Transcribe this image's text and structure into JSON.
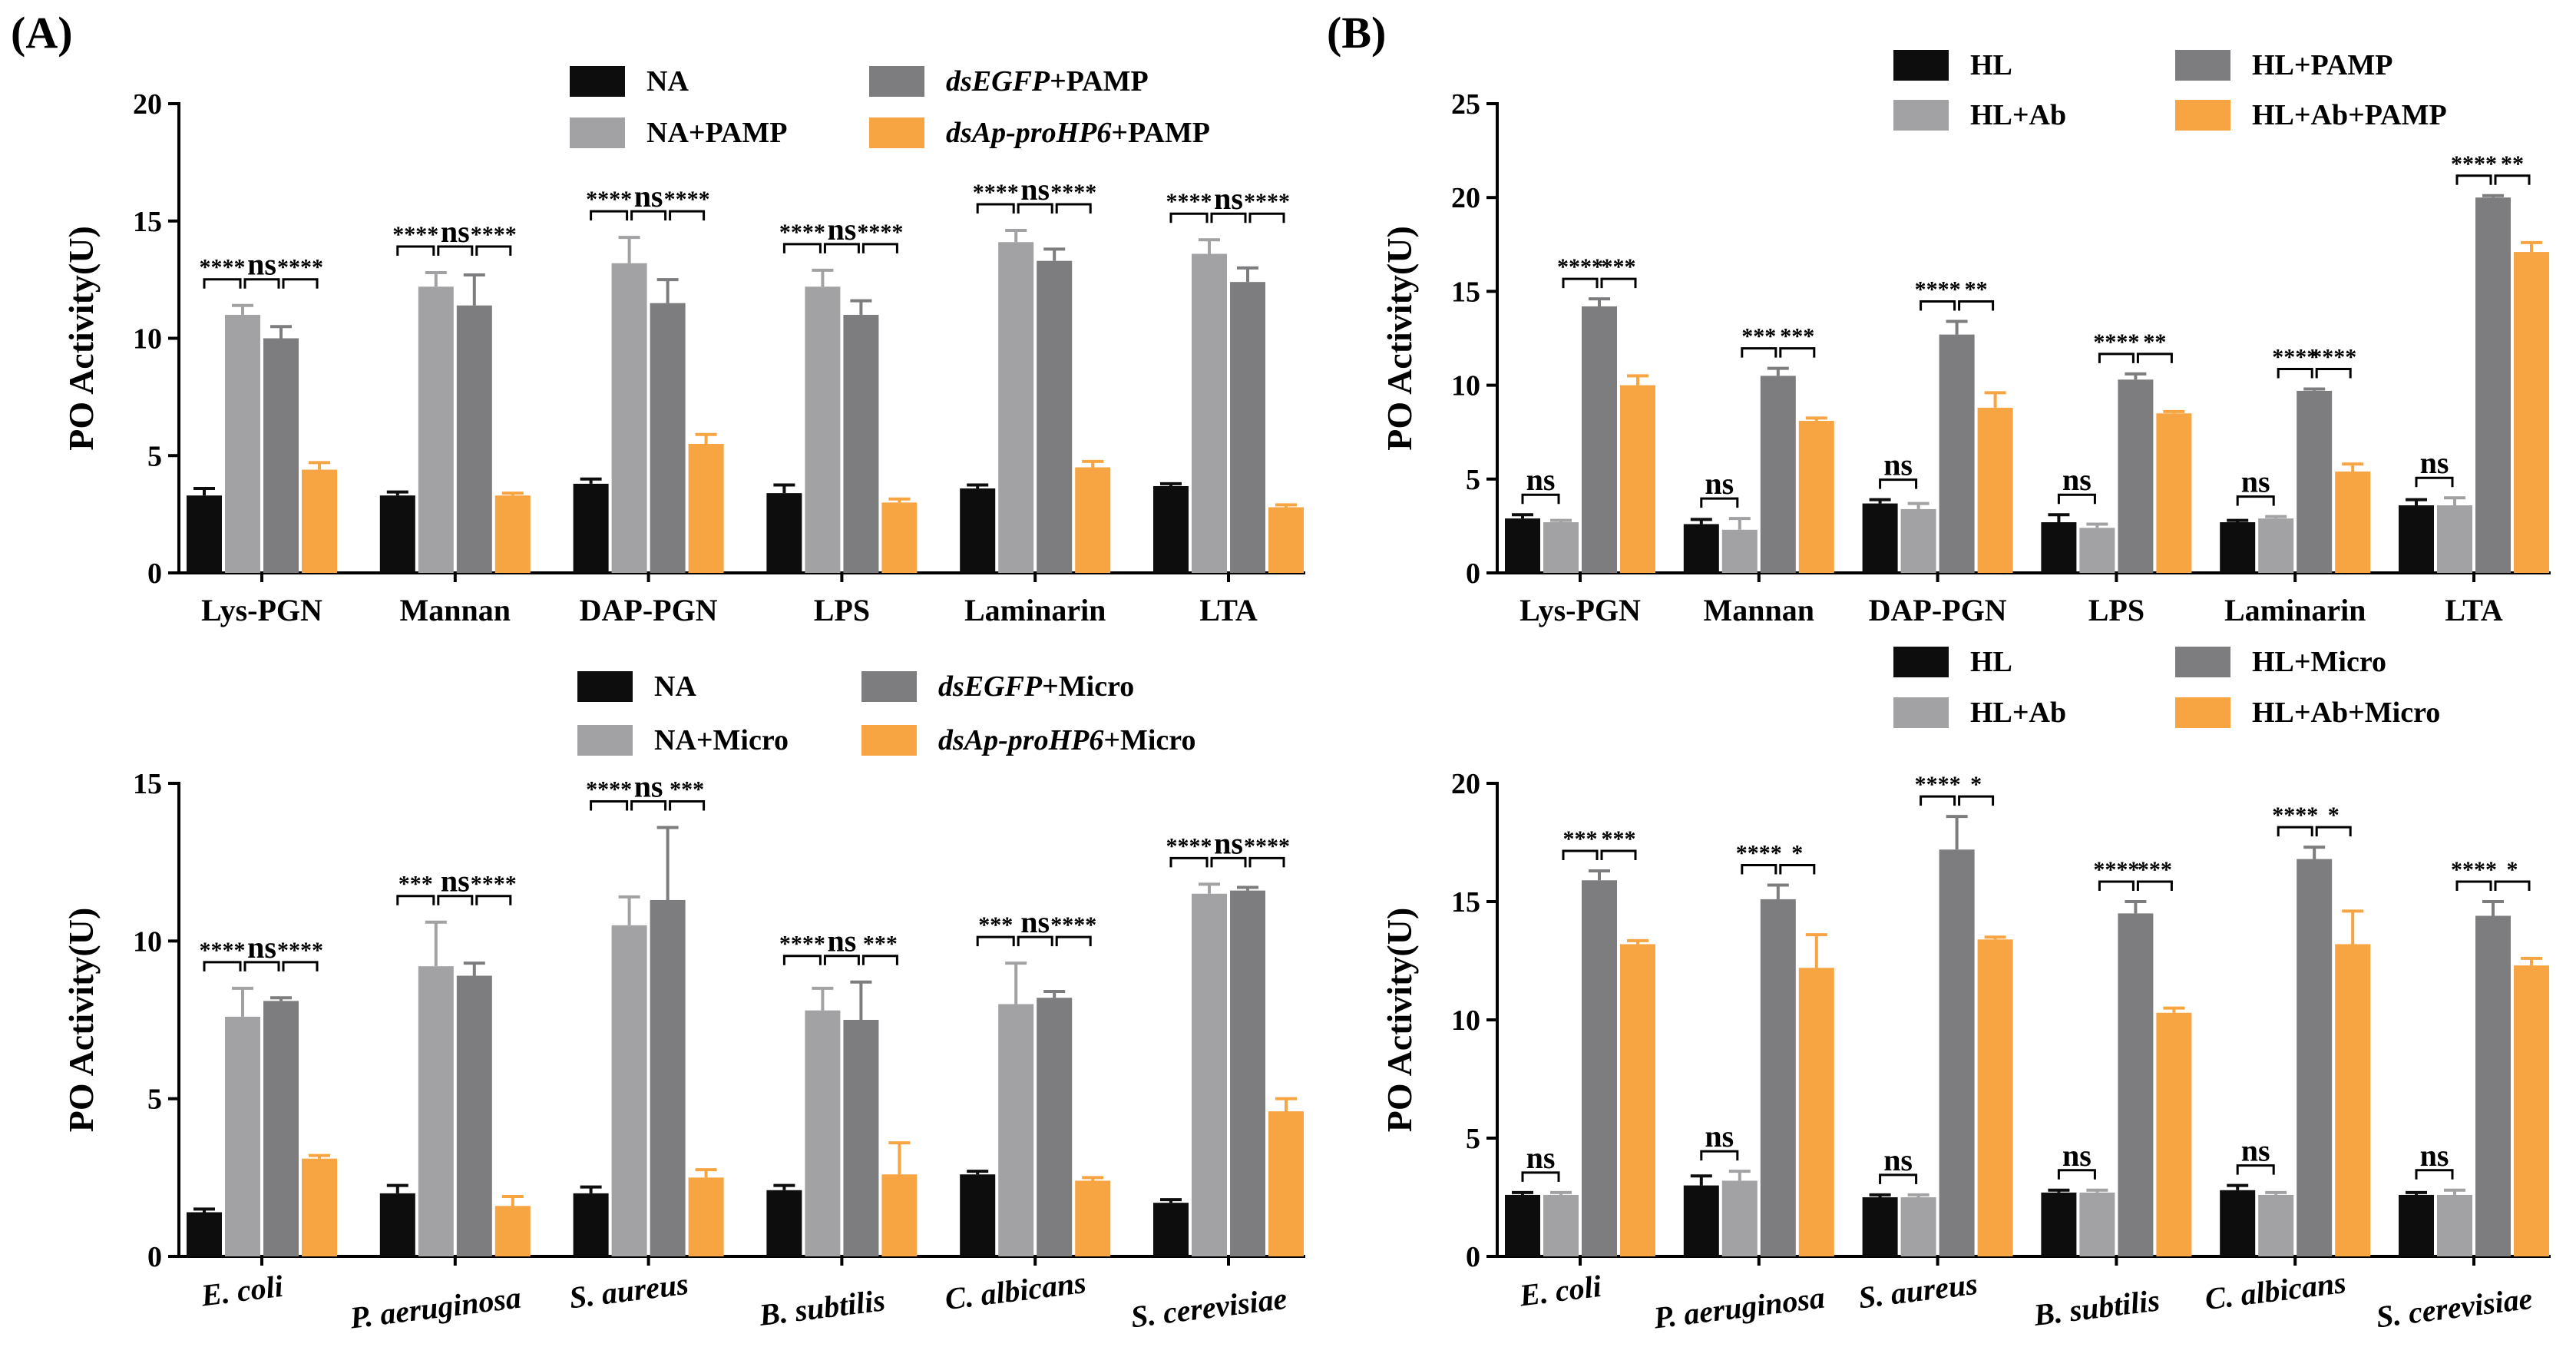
{
  "panels": [
    {
      "label": "(A)"
    },
    {
      "label": "(B)"
    }
  ],
  "colors": {
    "NA": "#0d0d0d",
    "PLUS": "#a2a2a4",
    "EGFP": "#7d7d7f",
    "ORANGE": "#f7a443",
    "AXIS": "#000000"
  },
  "chart_data": [
    {
      "id": "A-top",
      "panel": "(A)",
      "type": "bar",
      "ylabel": "PO Activity(U)",
      "xlabel": "",
      "ylim": [
        0,
        20
      ],
      "yticks": [
        0,
        5,
        10,
        15,
        20
      ],
      "categories": [
        "Lys-PGN",
        "Mannan",
        "DAP-PGN",
        "LPS",
        "Laminarin",
        "LTA"
      ],
      "italic_categories": false,
      "legend": [
        {
          "series": 0,
          "parts": [
            {
              "text": "NA",
              "italic": false
            }
          ]
        },
        {
          "series": 2,
          "parts": [
            {
              "text": "dsEGFP",
              "italic": true
            },
            {
              "text": "+PAMP",
              "italic": false
            }
          ]
        },
        {
          "series": 1,
          "parts": [
            {
              "text": "NA+PAMP",
              "italic": false
            }
          ]
        },
        {
          "series": 3,
          "parts": [
            {
              "text": "dsAp-proHP6",
              "italic": true
            },
            {
              "text": "+PAMP",
              "italic": false
            }
          ]
        }
      ],
      "series": [
        {
          "name": "NA",
          "color": "NA",
          "values": [
            3.3,
            3.3,
            3.8,
            3.4,
            3.6,
            3.7
          ],
          "errors": [
            0.3,
            0.15,
            0.2,
            0.35,
            0.15,
            0.1
          ]
        },
        {
          "name": "NA+PAMP",
          "color": "PLUS",
          "values": [
            11.0,
            12.2,
            13.2,
            12.2,
            14.1,
            13.6
          ],
          "errors": [
            0.4,
            0.6,
            1.1,
            0.7,
            0.5,
            0.6
          ]
        },
        {
          "name": "dsEGFP+PAMP",
          "color": "EGFP",
          "values": [
            10.0,
            11.4,
            11.5,
            11.0,
            13.3,
            12.4
          ],
          "errors": [
            0.5,
            1.3,
            1.0,
            0.6,
            0.5,
            0.6
          ]
        },
        {
          "name": "dsAp-proHP6+PAMP",
          "color": "ORANGE",
          "values": [
            4.4,
            3.3,
            5.5,
            3.0,
            4.5,
            2.8
          ],
          "errors": [
            0.3,
            0.1,
            0.4,
            0.15,
            0.25,
            0.1
          ]
        }
      ],
      "significance": [
        [
          "****",
          "ns",
          "****"
        ],
        [
          "****",
          "ns",
          "****"
        ],
        [
          "****",
          "ns",
          "****"
        ],
        [
          "****",
          "ns",
          "****"
        ],
        [
          "****",
          "ns",
          "****"
        ],
        [
          "****",
          "ns",
          "****"
        ]
      ],
      "sig_style": "triple"
    },
    {
      "id": "A-bottom",
      "panel": "(A)",
      "type": "bar",
      "ylabel": "PO Activity(U)",
      "xlabel": "",
      "ylim": [
        0,
        15
      ],
      "yticks": [
        0,
        5,
        10,
        15
      ],
      "categories": [
        "E. coli",
        "P. aeruginosa",
        "S. aureus",
        "B. subtilis",
        "C. albicans",
        "S. cerevisiae"
      ],
      "italic_categories": true,
      "legend": [
        {
          "series": 0,
          "parts": [
            {
              "text": "NA",
              "italic": false
            }
          ]
        },
        {
          "series": 2,
          "parts": [
            {
              "text": "dsEGFP",
              "italic": true
            },
            {
              "text": "+Micro",
              "italic": false
            }
          ]
        },
        {
          "series": 1,
          "parts": [
            {
              "text": "NA+Micro",
              "italic": false
            }
          ]
        },
        {
          "series": 3,
          "parts": [
            {
              "text": "dsAp-proHP6",
              "italic": true
            },
            {
              "text": "+Micro",
              "italic": false
            }
          ]
        }
      ],
      "series": [
        {
          "name": "NA",
          "color": "NA",
          "values": [
            1.4,
            2.0,
            2.0,
            2.1,
            2.6,
            1.7
          ],
          "errors": [
            0.1,
            0.25,
            0.2,
            0.15,
            0.1,
            0.1
          ]
        },
        {
          "name": "NA+Micro",
          "color": "PLUS",
          "values": [
            7.6,
            9.2,
            10.5,
            7.8,
            8.0,
            11.5
          ],
          "errors": [
            0.9,
            1.4,
            0.9,
            0.7,
            1.3,
            0.3
          ]
        },
        {
          "name": "dsEGFP+Micro",
          "color": "EGFP",
          "values": [
            8.1,
            8.9,
            11.3,
            7.5,
            8.2,
            11.6
          ],
          "errors": [
            0.1,
            0.4,
            2.3,
            1.2,
            0.2,
            0.1
          ]
        },
        {
          "name": "dsAp-proHP6+Micro",
          "color": "ORANGE",
          "values": [
            3.1,
            1.6,
            2.5,
            2.6,
            2.4,
            4.6
          ],
          "errors": [
            0.1,
            0.3,
            0.25,
            1.0,
            0.1,
            0.4
          ]
        }
      ],
      "significance": [
        [
          "****",
          "ns",
          "****"
        ],
        [
          "***",
          "ns",
          "****"
        ],
        [
          "****",
          "ns",
          "***"
        ],
        [
          "****",
          "ns",
          "***"
        ],
        [
          "***",
          "ns",
          "****"
        ],
        [
          "****",
          "ns",
          "****"
        ]
      ],
      "sig_style": "triple"
    },
    {
      "id": "B-top",
      "panel": "(B)",
      "type": "bar",
      "ylabel": "PO Activity(U)",
      "xlabel": "",
      "ylim": [
        0,
        25
      ],
      "yticks": [
        0,
        5,
        10,
        15,
        20,
        25
      ],
      "categories": [
        "Lys-PGN",
        "Mannan",
        "DAP-PGN",
        "LPS",
        "Laminarin",
        "LTA"
      ],
      "italic_categories": false,
      "legend": [
        {
          "series": 0,
          "parts": [
            {
              "text": "HL",
              "italic": false
            }
          ]
        },
        {
          "series": 2,
          "parts": [
            {
              "text": "HL+PAMP",
              "italic": false
            }
          ]
        },
        {
          "series": 1,
          "parts": [
            {
              "text": "HL+Ab",
              "italic": false
            }
          ]
        },
        {
          "series": 3,
          "parts": [
            {
              "text": "HL+Ab+PAMP",
              "italic": false
            }
          ]
        }
      ],
      "series": [
        {
          "name": "HL",
          "color": "NA",
          "values": [
            2.9,
            2.6,
            3.7,
            2.7,
            2.7,
            3.6
          ],
          "errors": [
            0.2,
            0.25,
            0.2,
            0.4,
            0.1,
            0.3
          ]
        },
        {
          "name": "HL+Ab",
          "color": "PLUS",
          "values": [
            2.7,
            2.3,
            3.4,
            2.4,
            2.9,
            3.6
          ],
          "errors": [
            0.1,
            0.6,
            0.3,
            0.2,
            0.1,
            0.4
          ]
        },
        {
          "name": "HL+PAMP",
          "color": "EGFP",
          "values": [
            14.2,
            10.5,
            12.7,
            10.3,
            9.7,
            20.0
          ],
          "errors": [
            0.4,
            0.4,
            0.7,
            0.3,
            0.1,
            0.1
          ]
        },
        {
          "name": "HL+Ab+PAMP",
          "color": "ORANGE",
          "values": [
            10.0,
            8.1,
            8.8,
            8.5,
            5.4,
            17.1
          ],
          "errors": [
            0.5,
            0.15,
            0.8,
            0.1,
            0.4,
            0.5
          ]
        }
      ],
      "significance": [
        [
          "ns",
          "****",
          "***"
        ],
        [
          "ns",
          "***",
          "***"
        ],
        [
          "ns",
          "****",
          "**"
        ],
        [
          "ns",
          "****",
          "**"
        ],
        [
          "ns",
          "****",
          "****"
        ],
        [
          "ns",
          "****",
          "**"
        ]
      ],
      "sig_style": "b"
    },
    {
      "id": "B-bottom",
      "panel": "(B)",
      "type": "bar",
      "ylabel": "PO Activity(U)",
      "xlabel": "",
      "ylim": [
        0,
        20
      ],
      "yticks": [
        0,
        5,
        10,
        15,
        20
      ],
      "categories": [
        "E. coli",
        "P. aeruginosa",
        "S. aureus",
        "B. subtilis",
        "C. albicans",
        "S. cerevisiae"
      ],
      "italic_categories": true,
      "legend": [
        {
          "series": 0,
          "parts": [
            {
              "text": "HL",
              "italic": false
            }
          ]
        },
        {
          "series": 2,
          "parts": [
            {
              "text": "HL+Micro",
              "italic": false
            }
          ]
        },
        {
          "series": 1,
          "parts": [
            {
              "text": "HL+Ab",
              "italic": false
            }
          ]
        },
        {
          "series": 3,
          "parts": [
            {
              "text": "HL+Ab+Micro",
              "italic": false
            }
          ]
        }
      ],
      "series": [
        {
          "name": "HL",
          "color": "NA",
          "values": [
            2.6,
            3.0,
            2.5,
            2.7,
            2.8,
            2.6
          ],
          "errors": [
            0.1,
            0.4,
            0.1,
            0.1,
            0.2,
            0.1
          ]
        },
        {
          "name": "HL+Ab",
          "color": "PLUS",
          "values": [
            2.6,
            3.2,
            2.5,
            2.7,
            2.6,
            2.6
          ],
          "errors": [
            0.1,
            0.4,
            0.1,
            0.1,
            0.1,
            0.2
          ]
        },
        {
          "name": "HL+Micro",
          "color": "EGFP",
          "values": [
            15.9,
            15.1,
            17.2,
            14.5,
            16.8,
            14.4
          ],
          "errors": [
            0.4,
            0.6,
            1.4,
            0.5,
            0.5,
            0.6
          ]
        },
        {
          "name": "HL+Ab+Micro",
          "color": "ORANGE",
          "values": [
            13.2,
            12.2,
            13.4,
            10.3,
            13.2,
            12.3
          ],
          "errors": [
            0.15,
            1.4,
            0.1,
            0.2,
            1.4,
            0.3
          ]
        }
      ],
      "significance": [
        [
          "ns",
          "***",
          "***"
        ],
        [
          "ns",
          "****",
          "*"
        ],
        [
          "ns",
          "****",
          "*"
        ],
        [
          "ns",
          "****",
          "***"
        ],
        [
          "ns",
          "****",
          "*"
        ],
        [
          "ns",
          "****",
          "*"
        ]
      ],
      "sig_style": "b"
    }
  ]
}
